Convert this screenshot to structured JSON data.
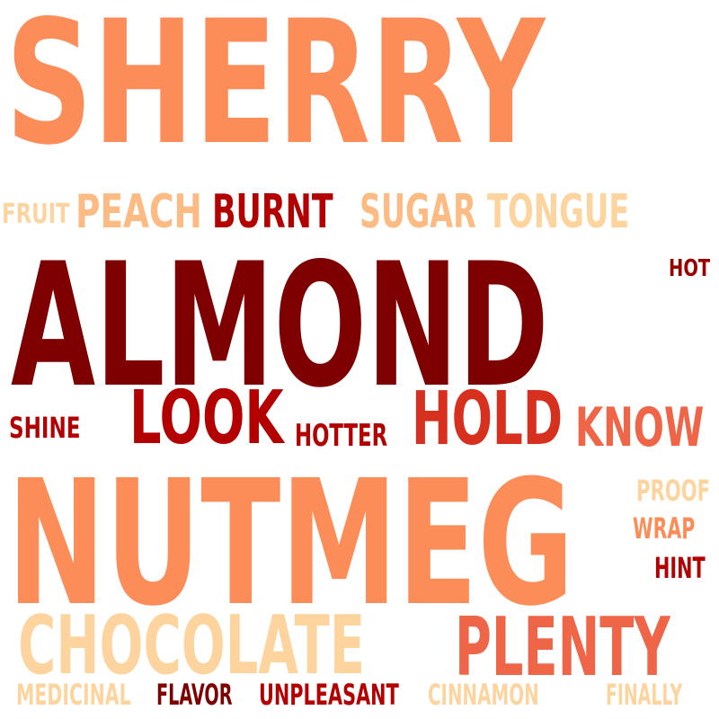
{
  "words": {
    "sherry": {
      "text": "SHERRY",
      "color": "#fc8d59"
    },
    "fruit": {
      "text": "FRUIT",
      "color": "#fdd49e"
    },
    "peach": {
      "text": "PEACH",
      "color": "#fdbb84"
    },
    "burnt": {
      "text": "BURNT",
      "color": "#b30000"
    },
    "sugar": {
      "text": "SUGAR",
      "color": "#fdbb84"
    },
    "tongue": {
      "text": "TONGUE",
      "color": "#fdd49e"
    },
    "hot": {
      "text": "HOT",
      "color": "#990000"
    },
    "almond": {
      "text": "ALMOND",
      "color": "#7f0000"
    },
    "shine": {
      "text": "SHINE",
      "color": "#b30000"
    },
    "look": {
      "text": "LOOK",
      "color": "#b30000"
    },
    "hotter": {
      "text": "HOTTER",
      "color": "#b30000"
    },
    "hold": {
      "text": "HOLD",
      "color": "#d7301f"
    },
    "know": {
      "text": "KNOW",
      "color": "#ef6548"
    },
    "nutmeg": {
      "text": "NUTMEG",
      "color": "#fc8d59"
    },
    "proof": {
      "text": "PROOF",
      "color": "#fdd49e"
    },
    "wrap": {
      "text": "WRAP",
      "color": "#fc8d59"
    },
    "hint": {
      "text": "HINT",
      "color": "#b30000"
    },
    "chocolate": {
      "text": "CHOCOLATE",
      "color": "#fdd49e"
    },
    "plenty": {
      "text": "PLENTY",
      "color": "#ef6548"
    },
    "medicinal": {
      "text": "MEDICINAL",
      "color": "#fdd49e"
    },
    "flavor": {
      "text": "FLAVOR",
      "color": "#7f0000"
    },
    "unpleasant": {
      "text": "UNPLEASANT",
      "color": "#b30000"
    },
    "cinnamon": {
      "text": "CINNAMON",
      "color": "#fdd49e"
    },
    "finally": {
      "text": "FINALLY",
      "color": "#fdd49e"
    }
  }
}
